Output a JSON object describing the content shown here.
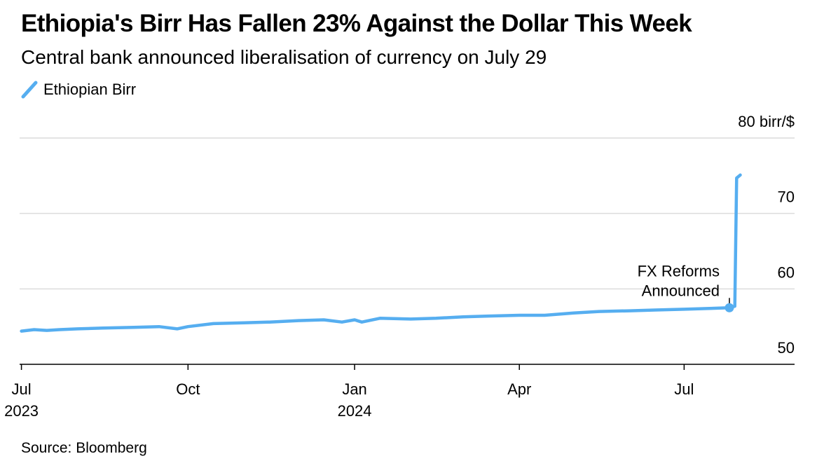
{
  "chart_data": {
    "type": "line",
    "title": "Ethiopia's Birr Has Fallen 23% Against the Dollar This Week",
    "subtitle": "Central bank announced liberalisation of currency on July 29",
    "legend_position": "top-left",
    "grid": true,
    "series": [
      {
        "name": "Ethiopian Birr",
        "color": "#56aef0",
        "points": [
          [
            "2023-07-01",
            54.4
          ],
          [
            "2023-07-08",
            54.6
          ],
          [
            "2023-07-15",
            54.5
          ],
          [
            "2023-07-22",
            54.6
          ],
          [
            "2023-08-01",
            54.7
          ],
          [
            "2023-08-15",
            54.8
          ],
          [
            "2023-09-01",
            54.9
          ],
          [
            "2023-09-15",
            55.0
          ],
          [
            "2023-09-25",
            54.7
          ],
          [
            "2023-10-01",
            55.0
          ],
          [
            "2023-10-15",
            55.4
          ],
          [
            "2023-11-01",
            55.5
          ],
          [
            "2023-11-15",
            55.6
          ],
          [
            "2023-12-01",
            55.8
          ],
          [
            "2023-12-15",
            55.9
          ],
          [
            "2023-12-25",
            55.6
          ],
          [
            "2024-01-01",
            55.9
          ],
          [
            "2024-01-05",
            55.6
          ],
          [
            "2024-01-15",
            56.1
          ],
          [
            "2024-02-01",
            56.0
          ],
          [
            "2024-02-15",
            56.1
          ],
          [
            "2024-03-01",
            56.3
          ],
          [
            "2024-03-15",
            56.4
          ],
          [
            "2024-04-01",
            56.5
          ],
          [
            "2024-04-15",
            56.5
          ],
          [
            "2024-05-01",
            56.8
          ],
          [
            "2024-05-15",
            57.0
          ],
          [
            "2024-06-01",
            57.1
          ],
          [
            "2024-06-15",
            57.2
          ],
          [
            "2024-07-01",
            57.3
          ],
          [
            "2024-07-15",
            57.4
          ],
          [
            "2024-07-26",
            57.5
          ],
          [
            "2024-07-29",
            57.7
          ],
          [
            "2024-07-30",
            74.7
          ],
          [
            "2024-08-01",
            75.1
          ]
        ]
      }
    ],
    "marker": {
      "x": "2024-07-26",
      "y": 57.5
    },
    "annotation": {
      "lines": [
        "FX Reforms",
        "Announced"
      ]
    },
    "y_axis": {
      "min": 50,
      "max": 80,
      "ticks": [
        50,
        60,
        70,
        80
      ],
      "unit_label": "80 birr/$",
      "position": "right"
    },
    "x_axis": {
      "min": "2023-06-30",
      "max": "2024-08-31",
      "ticks": [
        {
          "date": "2023-07-01",
          "label": "Jul",
          "year": "2023"
        },
        {
          "date": "2023-10-01",
          "label": "Oct",
          "year": ""
        },
        {
          "date": "2024-01-01",
          "label": "Jan",
          "year": "2024"
        },
        {
          "date": "2024-04-01",
          "label": "Apr",
          "year": ""
        },
        {
          "date": "2024-07-01",
          "label": "Jul",
          "year": ""
        }
      ]
    }
  },
  "source": "Source: Bloomberg"
}
